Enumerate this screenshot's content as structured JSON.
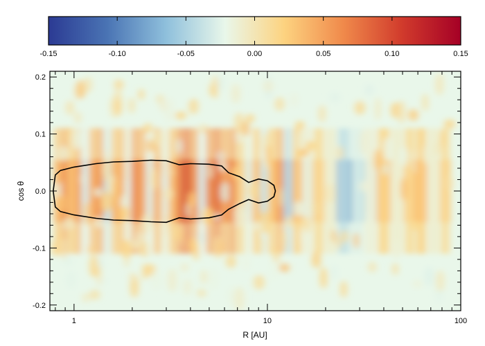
{
  "chart_data": {
    "type": "heatmap",
    "colorbar": {
      "range": [
        -0.15,
        0.15
      ],
      "ticks": [
        "-0.15",
        "-0.10",
        "-0.05",
        "0.00",
        "0.05",
        "0.10",
        "0.15"
      ],
      "colormap": [
        "#2b3a93",
        "#4a74b4",
        "#8fc0dc",
        "#e9f7ea",
        "#fdd380",
        "#f08a4b",
        "#d13b2c",
        "#a50026"
      ],
      "location": "top"
    },
    "x_axis": {
      "label": "R [AU]",
      "scale": "log",
      "range": [
        0.75,
        100
      ],
      "ticks": [
        {
          "value": 1,
          "label": "1"
        },
        {
          "value": 10,
          "label": "10"
        },
        {
          "value": 100,
          "label": "100"
        }
      ]
    },
    "y_axis": {
      "label": "cos θ",
      "range": [
        -0.21,
        0.21
      ],
      "ticks": [
        {
          "value": 0.2,
          "label": "0.2"
        },
        {
          "value": 0.1,
          "label": "0.1"
        },
        {
          "value": 0.0,
          "label": "0.0"
        },
        {
          "value": -0.1,
          "label": "-0.1"
        },
        {
          "value": -0.2,
          "label": "-0.2"
        }
      ]
    },
    "contour": {
      "color": "#000000",
      "points": [
        [
          0.78,
          0.0
        ],
        [
          0.8,
          0.028
        ],
        [
          0.85,
          0.036
        ],
        [
          1.0,
          0.042
        ],
        [
          1.3,
          0.048
        ],
        [
          1.6,
          0.051
        ],
        [
          2.0,
          0.052
        ],
        [
          2.5,
          0.054
        ],
        [
          3.0,
          0.053
        ],
        [
          3.5,
          0.046
        ],
        [
          4.0,
          0.048
        ],
        [
          5.0,
          0.047
        ],
        [
          5.8,
          0.044
        ],
        [
          6.3,
          0.032
        ],
        [
          7.2,
          0.025
        ],
        [
          8.0,
          0.015
        ],
        [
          9.0,
          0.021
        ],
        [
          10.0,
          0.018
        ],
        [
          10.8,
          0.01
        ],
        [
          11.0,
          0.0
        ],
        [
          10.8,
          -0.01
        ],
        [
          10.0,
          -0.018
        ],
        [
          9.0,
          -0.021
        ],
        [
          8.0,
          -0.015
        ],
        [
          7.2,
          -0.022
        ],
        [
          6.3,
          -0.032
        ],
        [
          5.8,
          -0.042
        ],
        [
          5.0,
          -0.047
        ],
        [
          4.0,
          -0.049
        ],
        [
          3.5,
          -0.047
        ],
        [
          3.0,
          -0.055
        ],
        [
          2.5,
          -0.054
        ],
        [
          2.0,
          -0.052
        ],
        [
          1.6,
          -0.051
        ],
        [
          1.3,
          -0.048
        ],
        [
          1.0,
          -0.042
        ],
        [
          0.85,
          -0.036
        ],
        [
          0.8,
          -0.028
        ],
        [
          0.78,
          0.0
        ]
      ]
    },
    "bands": [
      {
        "r": 0.82,
        "value": 0.06
      },
      {
        "r": 0.9,
        "value": 0.09
      },
      {
        "r": 0.97,
        "value": 0.05
      },
      {
        "r": 1.05,
        "value": 0.08
      },
      {
        "r": 1.14,
        "value": -0.05
      },
      {
        "r": 1.25,
        "value": 0.07
      },
      {
        "r": 1.35,
        "value": 0.09
      },
      {
        "r": 1.5,
        "value": -0.06
      },
      {
        "r": 1.62,
        "value": 0.06
      },
      {
        "r": 1.75,
        "value": 0.07
      },
      {
        "r": 1.9,
        "value": -0.03
      },
      {
        "r": 2.05,
        "value": 0.1
      },
      {
        "r": 2.25,
        "value": 0.08
      },
      {
        "r": 2.45,
        "value": -0.04
      },
      {
        "r": 2.7,
        "value": 0.07
      },
      {
        "r": 2.95,
        "value": -0.03
      },
      {
        "r": 3.25,
        "value": 0.06
      },
      {
        "r": 3.55,
        "value": 0.12
      },
      {
        "r": 3.85,
        "value": 0.15
      },
      {
        "r": 4.2,
        "value": 0.09
      },
      {
        "r": 4.6,
        "value": -0.05
      },
      {
        "r": 5.0,
        "value": 0.1
      },
      {
        "r": 5.5,
        "value": 0.13
      },
      {
        "r": 6.0,
        "value": 0.08
      },
      {
        "r": 6.6,
        "value": 0.1
      },
      {
        "r": 7.3,
        "value": 0.03
      },
      {
        "r": 8.0,
        "value": -0.04
      },
      {
        "r": 8.8,
        "value": 0.05
      },
      {
        "r": 9.6,
        "value": -0.06
      },
      {
        "r": 10.5,
        "value": 0.04
      },
      {
        "r": 11.5,
        "value": 0.08
      },
      {
        "r": 12.8,
        "value": -0.08
      },
      {
        "r": 14.2,
        "value": 0.05
      },
      {
        "r": 16.0,
        "value": -0.03
      },
      {
        "r": 18.5,
        "value": 0.03
      },
      {
        "r": 21.0,
        "value": -0.02
      },
      {
        "r": 25.0,
        "value": -0.09
      },
      {
        "r": 29.0,
        "value": -0.06
      },
      {
        "r": 34.0,
        "value": -0.03
      },
      {
        "r": 40.0,
        "value": 0.04
      },
      {
        "r": 47.0,
        "value": -0.02
      },
      {
        "r": 55.0,
        "value": 0.03
      },
      {
        "r": 62.0,
        "value": 0.05
      },
      {
        "r": 72.0,
        "value": -0.02
      },
      {
        "r": 85.0,
        "value": 0.03
      }
    ]
  }
}
